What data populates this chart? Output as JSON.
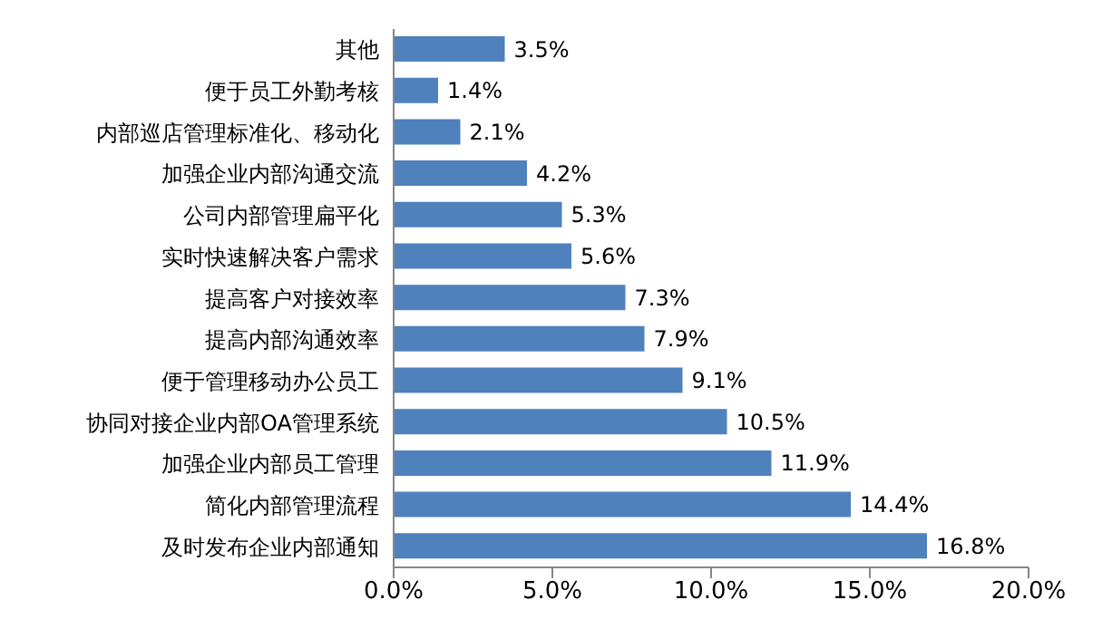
{
  "chart_data": {
    "type": "bar",
    "orientation": "horizontal",
    "categories": [
      "其他",
      "便于员工外勤考核",
      "内部巡店管理标准化、移动化",
      "加强企业内部沟通交流",
      "公司内部管理扁平化",
      "实时快速解决客户需求",
      "提高客户对接效率",
      "提高内部沟通效率",
      "便于管理移动办公员工",
      "协同对接企业内部OA管理系统",
      "加强企业内部员工管理",
      "简化内部管理流程",
      "及时发布企业内部通知"
    ],
    "values": [
      3.5,
      1.4,
      2.1,
      4.2,
      5.3,
      5.6,
      7.3,
      7.9,
      9.1,
      10.5,
      11.9,
      14.4,
      16.8
    ],
    "value_labels": [
      "3.5%",
      "1.4%",
      "2.1%",
      "4.2%",
      "5.3%",
      "5.6%",
      "7.3%",
      "7.9%",
      "9.1%",
      "10.5%",
      "11.9%",
      "14.4%",
      "16.8%"
    ],
    "color": "#4f81bd",
    "xlim": [
      0,
      20
    ],
    "xticks": [
      {
        "value": 0,
        "label": "0.0%"
      },
      {
        "value": 5,
        "label": "5.0%"
      },
      {
        "value": 10,
        "label": "10.0%"
      },
      {
        "value": 15,
        "label": "15.0%"
      },
      {
        "value": 20,
        "label": "20.0%"
      }
    ],
    "grid": false,
    "legend": false
  }
}
